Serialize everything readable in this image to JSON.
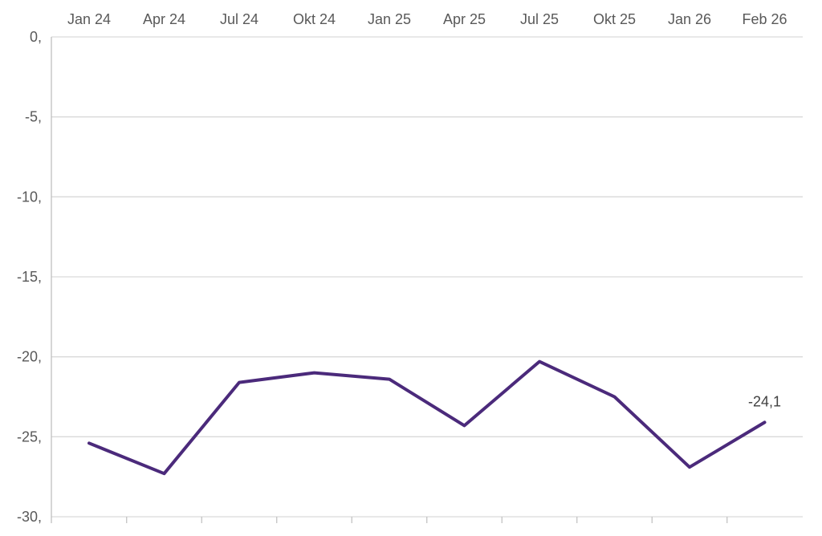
{
  "chart_data": {
    "type": "line",
    "title": "",
    "xlabel": "",
    "ylabel": "",
    "x": [
      "Jan 24",
      "Apr 24",
      "Jul 24",
      "Okt 24",
      "Jan 25",
      "Apr 25",
      "Jul 25",
      "Okt 25",
      "Jan 26",
      "Feb 26"
    ],
    "y_tick_labels": [
      "0,",
      "-5,",
      "-10,",
      "-15,",
      "-20,",
      "-25,",
      "-30,"
    ],
    "y_ticks": [
      0,
      -5,
      -10,
      -15,
      -20,
      -25,
      -30
    ],
    "ylim": [
      -30,
      0
    ],
    "x_axis_position": "top",
    "grid": true,
    "series": [
      {
        "values": [
          -25.4,
          -27.3,
          -21.6,
          -21.0,
          -21.4,
          -24.3,
          -20.3,
          -22.5,
          -26.9,
          -24.1
        ],
        "color": "#4b2a7b"
      }
    ],
    "annotations": [
      {
        "index": 9,
        "text": "-24,1"
      }
    ],
    "colors": {
      "grid": "#d9d9d9",
      "axis": "#bfbfbf",
      "text": "#595959"
    }
  }
}
